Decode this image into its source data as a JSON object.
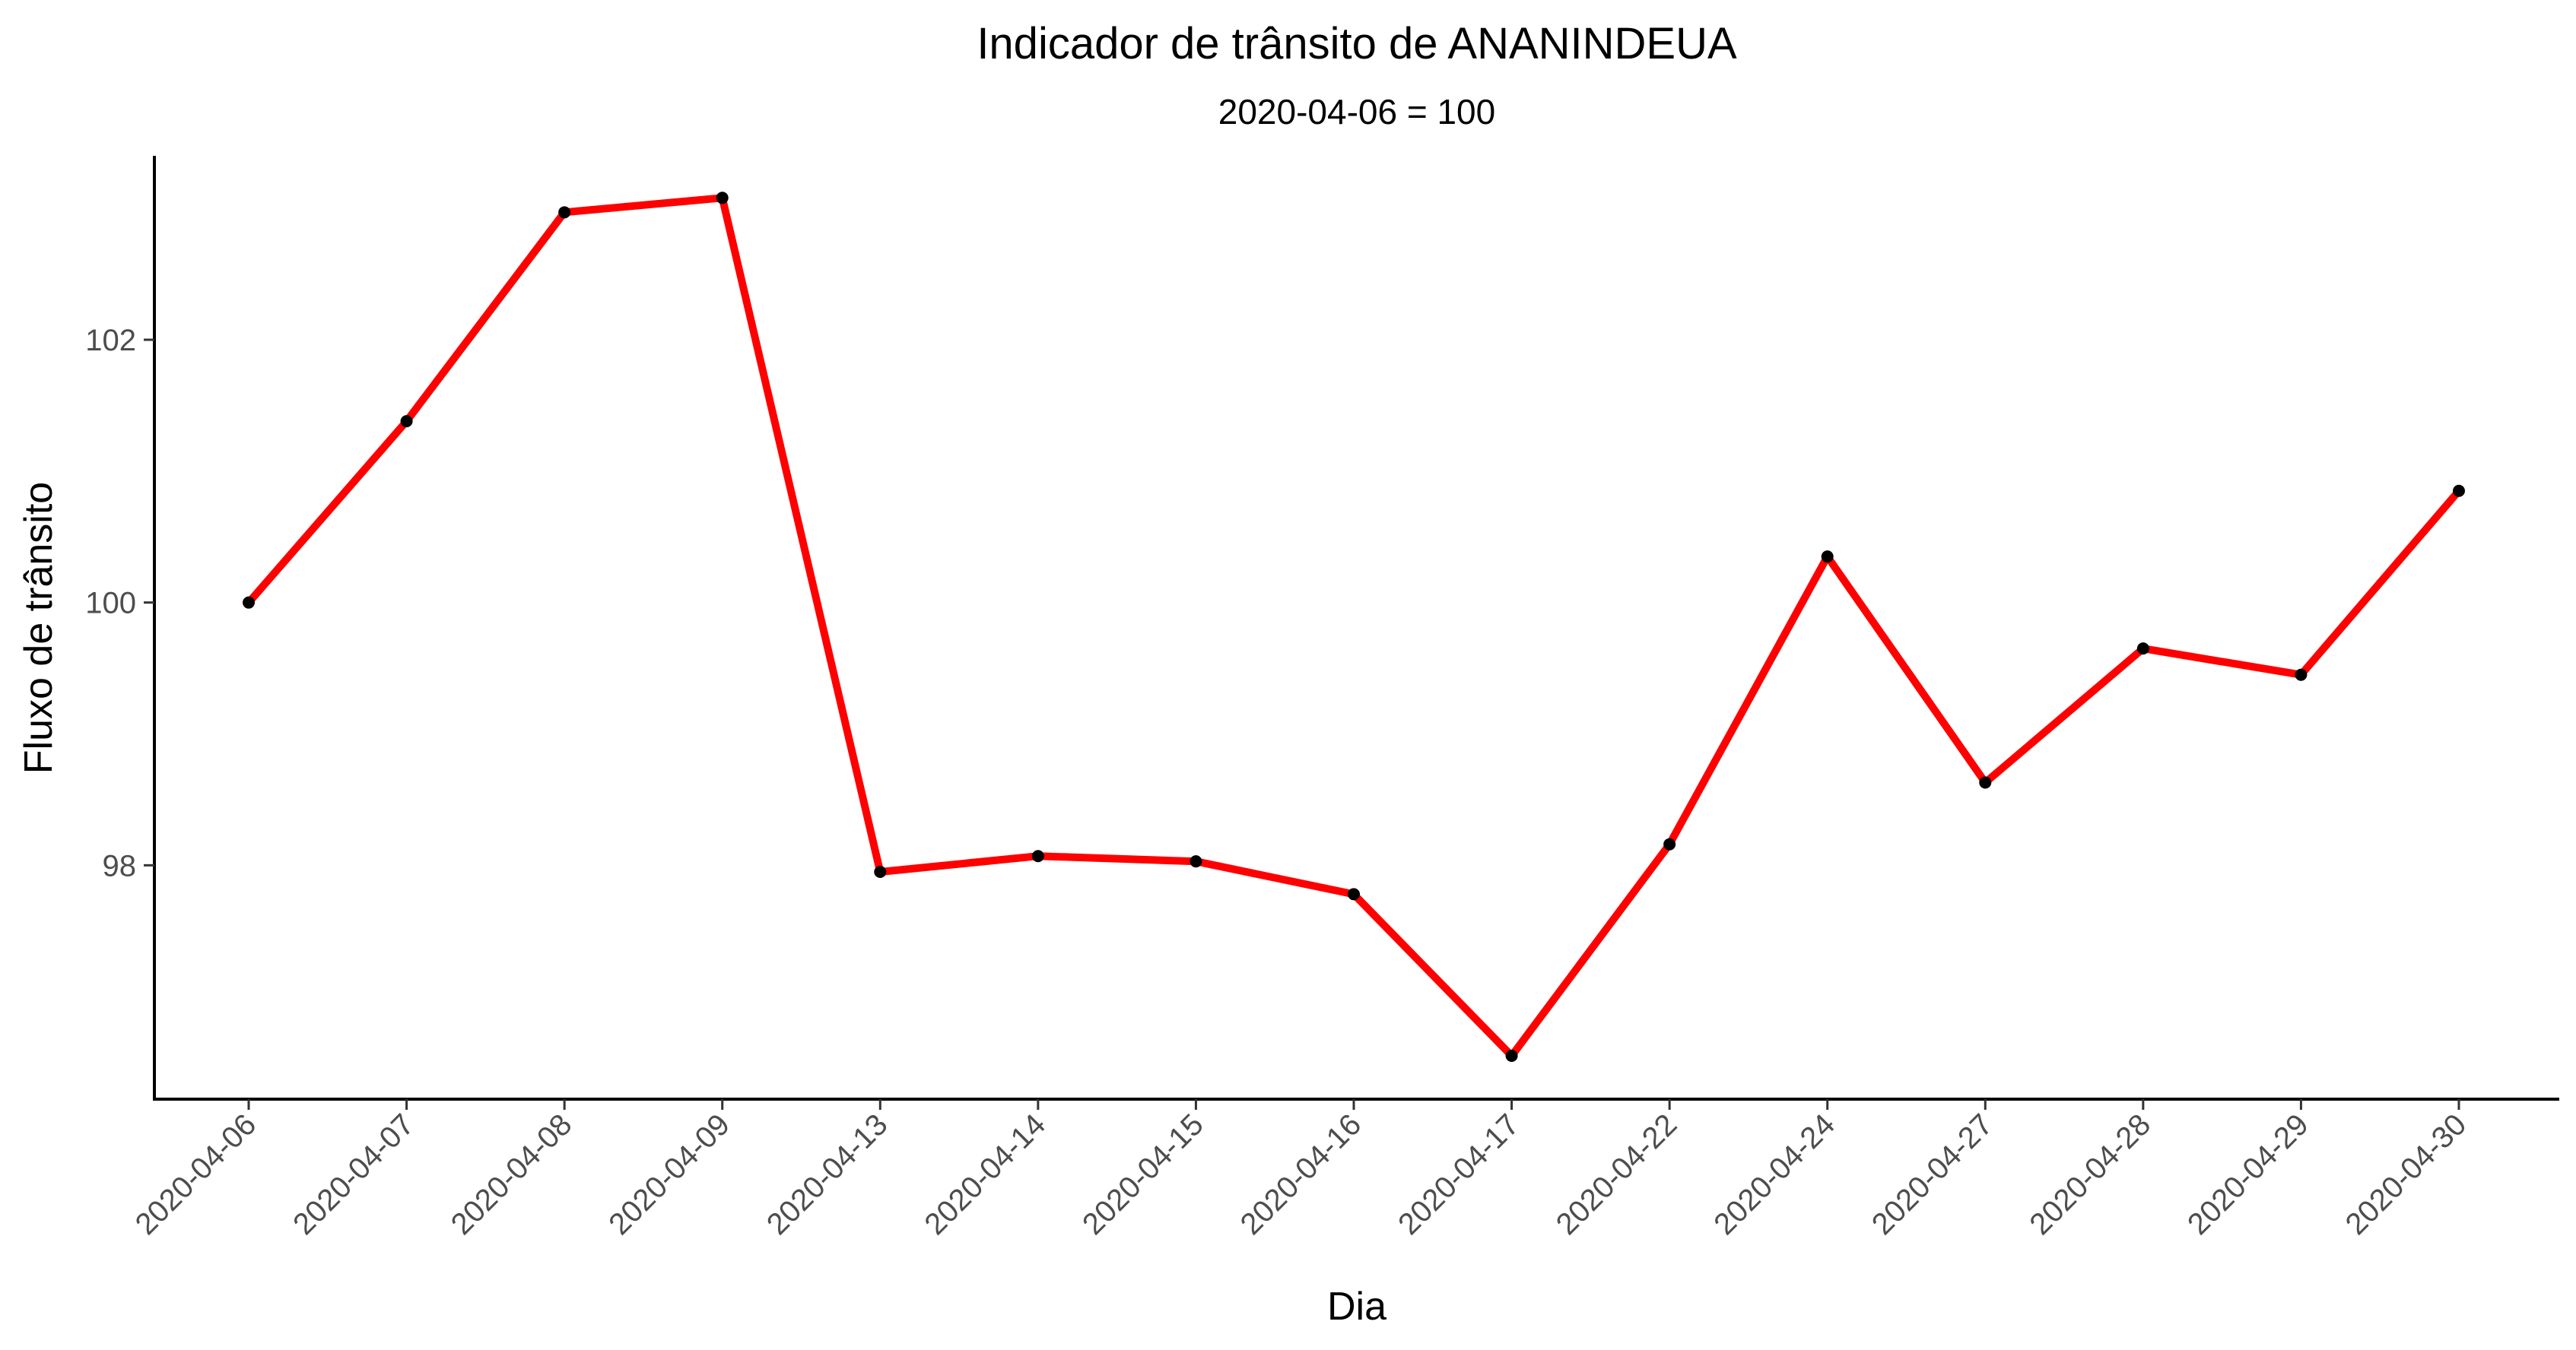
{
  "chart_data": {
    "type": "line",
    "title": "Indicador de trânsito de ANANINDEUA",
    "subtitle": "2020-04-06 = 100",
    "xlabel": "Dia",
    "ylabel": "Fluxo de trânsito",
    "categories": [
      "2020-04-06",
      "2020-04-07",
      "2020-04-08",
      "2020-04-09",
      "2020-04-13",
      "2020-04-14",
      "2020-04-15",
      "2020-04-16",
      "2020-04-17",
      "2020-04-22",
      "2020-04-24",
      "2020-04-27",
      "2020-04-28",
      "2020-04-29",
      "2020-04-30"
    ],
    "series": [
      {
        "values": [
          100.0,
          101.38,
          102.97,
          103.08,
          97.95,
          98.07,
          98.03,
          97.78,
          96.55,
          98.16,
          100.35,
          98.63,
          99.65,
          99.45,
          100.85
        ]
      }
    ],
    "yticks": [
      98,
      100,
      102
    ],
    "ylim": [
      96.22,
      103.4
    ],
    "grid": false,
    "legend": "none",
    "line_color": "#ff0000",
    "point_color": "#000000"
  }
}
